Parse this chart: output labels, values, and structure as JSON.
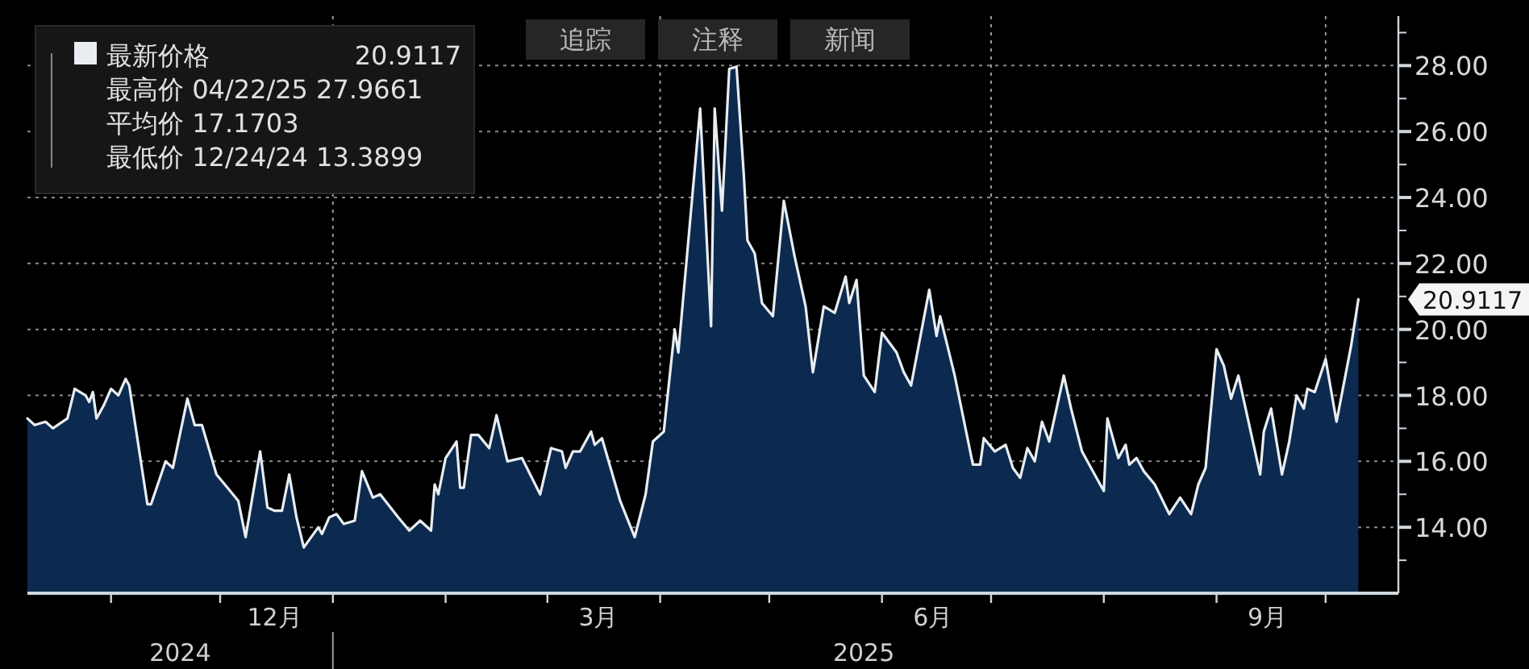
{
  "chart_data": {
    "type": "area",
    "x": [
      "2024-10-09",
      "2024-10-11",
      "2024-10-14",
      "2024-10-16",
      "2024-10-20",
      "2024-10-22",
      "2024-10-25",
      "2024-10-26",
      "2024-10-27",
      "2024-10-28",
      "2024-10-30",
      "2024-11-01",
      "2024-11-03",
      "2024-11-05",
      "2024-11-06",
      "2024-11-11",
      "2024-11-12",
      "2024-11-16",
      "2024-11-18",
      "2024-11-22",
      "2024-11-24",
      "2024-11-26",
      "2024-11-30",
      "2024-12-03",
      "2024-12-06",
      "2024-12-08",
      "2024-12-12",
      "2024-12-14",
      "2024-12-16",
      "2024-12-18",
      "2024-12-20",
      "2024-12-22",
      "2024-12-24",
      "2024-12-28",
      "2024-12-29",
      "2024-12-31",
      "2025-01-02",
      "2025-01-04",
      "2025-01-07",
      "2025-01-09",
      "2025-01-12",
      "2025-01-14",
      "2025-01-19",
      "2025-01-22",
      "2025-01-25",
      "2025-01-28",
      "2025-01-29",
      "2025-01-30",
      "2025-02-01",
      "2025-02-04",
      "2025-02-05",
      "2025-02-06",
      "2025-02-08",
      "2025-02-10",
      "2025-02-13",
      "2025-02-15",
      "2025-02-18",
      "2025-02-22",
      "2025-02-27",
      "2025-03-02",
      "2025-03-05",
      "2025-03-06",
      "2025-03-08",
      "2025-03-10",
      "2025-03-13",
      "2025-03-14",
      "2025-03-16",
      "2025-03-21",
      "2025-03-25",
      "2025-03-28",
      "2025-03-30",
      "2025-04-02",
      "2025-04-05",
      "2025-04-06",
      "2025-04-12",
      "2025-04-15",
      "2025-04-16",
      "2025-04-18",
      "2025-04-20",
      "2025-04-22",
      "2025-04-24",
      "2025-04-25",
      "2025-04-27",
      "2025-04-29",
      "2025-05-02",
      "2025-05-05",
      "2025-05-08",
      "2025-05-11",
      "2025-05-13",
      "2025-05-16",
      "2025-05-19",
      "2025-05-22",
      "2025-05-23",
      "2025-05-25",
      "2025-05-27",
      "2025-05-30",
      "2025-06-01",
      "2025-06-05",
      "2025-06-07",
      "2025-06-09",
      "2025-06-14",
      "2025-06-16",
      "2025-06-17",
      "2025-06-21",
      "2025-06-26",
      "2025-06-28",
      "2025-06-29",
      "2025-07-02",
      "2025-07-05",
      "2025-07-07",
      "2025-07-09",
      "2025-07-11",
      "2025-07-13",
      "2025-07-15",
      "2025-07-17",
      "2025-07-21",
      "2025-07-23",
      "2025-07-26",
      "2025-07-28",
      "2025-08-01",
      "2025-08-02",
      "2025-08-05",
      "2025-08-07",
      "2025-08-08",
      "2025-08-10",
      "2025-08-12",
      "2025-08-15",
      "2025-08-19",
      "2025-08-22",
      "2025-08-25",
      "2025-08-27",
      "2025-08-29",
      "2025-09-01",
      "2025-09-03",
      "2025-09-05",
      "2025-09-07",
      "2025-09-10",
      "2025-09-13",
      "2025-09-14",
      "2025-09-16",
      "2025-09-19",
      "2025-09-21",
      "2025-09-23",
      "2025-09-25",
      "2025-09-26",
      "2025-09-28",
      "2025-10-01",
      "2025-10-04",
      "2025-10-08",
      "2025-10-10"
    ],
    "series": [
      {
        "name": "最新价格",
        "color": "#e8edf2",
        "values": [
          17.3,
          17.1,
          17.2,
          17.0,
          17.3,
          18.2,
          18.0,
          17.8,
          18.1,
          17.3,
          17.7,
          18.2,
          18.0,
          18.5,
          18.3,
          14.7,
          14.7,
          16.0,
          15.8,
          17.9,
          17.1,
          17.1,
          15.6,
          15.2,
          14.8,
          13.7,
          16.3,
          14.6,
          14.5,
          14.5,
          15.6,
          14.3,
          13.3899,
          14.0,
          13.8,
          14.3,
          14.4,
          14.1,
          14.2,
          15.7,
          14.9,
          15.0,
          14.3,
          13.9,
          14.2,
          13.9,
          15.3,
          15.0,
          16.1,
          16.6,
          15.2,
          15.2,
          16.8,
          16.8,
          16.4,
          17.4,
          16.0,
          16.1,
          15.0,
          16.4,
          16.3,
          15.8,
          16.3,
          16.3,
          16.9,
          16.5,
          16.7,
          14.8,
          13.7,
          15.0,
          16.6,
          16.9,
          20.0,
          19.3,
          26.7,
          20.1,
          26.7,
          23.6,
          27.9,
          27.9661,
          24.7,
          22.7,
          22.3,
          20.8,
          20.4,
          23.9,
          22.2,
          20.7,
          18.7,
          20.7,
          20.5,
          21.6,
          20.8,
          21.5,
          18.6,
          18.1,
          19.9,
          19.3,
          18.7,
          18.3,
          21.2,
          19.8,
          20.4,
          18.6,
          15.9,
          15.9,
          16.7,
          16.3,
          16.5,
          15.8,
          15.5,
          16.4,
          16.0,
          17.2,
          16.6,
          18.6,
          17.6,
          16.3,
          15.9,
          15.1,
          17.3,
          16.1,
          16.5,
          15.9,
          16.1,
          15.7,
          15.3,
          14.4,
          14.9,
          14.4,
          15.3,
          15.8,
          19.4,
          18.9,
          17.9,
          18.6,
          17.1,
          15.6,
          16.9,
          17.6,
          15.6,
          16.6,
          18.0,
          17.6,
          18.2,
          18.1,
          19.1,
          17.2,
          19.5,
          20.9117
        ]
      }
    ],
    "xlim": [
      "2024-10-09",
      "2025-10-21"
    ],
    "xticks": [
      {
        "value": "2024-11-01",
        "label": null
      },
      {
        "value": "2024-12-01",
        "label": null
      },
      {
        "value": "2024-12-16",
        "label": "12月"
      },
      {
        "value": "2025-01-01",
        "label": null
      },
      {
        "value": "2025-02-01",
        "label": null
      },
      {
        "value": "2025-03-01",
        "label": null
      },
      {
        "value": "2025-03-15",
        "label": "3月"
      },
      {
        "value": "2025-04-01",
        "label": null
      },
      {
        "value": "2025-05-01",
        "label": null
      },
      {
        "value": "2025-06-01",
        "label": null
      },
      {
        "value": "2025-06-15",
        "label": "6月"
      },
      {
        "value": "2025-07-01",
        "label": null
      },
      {
        "value": "2025-08-01",
        "label": null
      },
      {
        "value": "2025-09-01",
        "label": null
      },
      {
        "value": "2025-09-15",
        "label": "9月"
      },
      {
        "value": "2025-10-01",
        "label": null
      }
    ],
    "x2lim": [
      "2024-10-09",
      "2025-10-21"
    ],
    "x2ticks": [
      {
        "value": "2024-11-20",
        "label": "2024"
      },
      {
        "value": "2025-01-01",
        "label": null
      },
      {
        "value": "2025-05-27",
        "label": "2025"
      }
    ],
    "ylim": [
      12,
      29.5
    ],
    "yticks": [
      {
        "value": 13,
        "label": null
      },
      {
        "value": 14,
        "label": "14.00"
      },
      {
        "value": 15,
        "label": null
      },
      {
        "value": 16,
        "label": "16.00"
      },
      {
        "value": 17,
        "label": null
      },
      {
        "value": 18,
        "label": "18.00"
      },
      {
        "value": 19,
        "label": null
      },
      {
        "value": 20,
        "label": "20.00"
      },
      {
        "value": 21,
        "label": null
      },
      {
        "value": 22,
        "label": "22.00"
      },
      {
        "value": 23,
        "label": null
      },
      {
        "value": 24,
        "label": "24.00"
      },
      {
        "value": 25,
        "label": null
      },
      {
        "value": 26,
        "label": "26.00"
      },
      {
        "value": 27,
        "label": null
      },
      {
        "value": 28,
        "label": "28.00"
      },
      {
        "value": 29,
        "label": null
      }
    ],
    "grid": "y",
    "legend": "top left",
    "ref_lines": [
      {
        "axis": "x",
        "value": "2025-01-01",
        "line_style": "dotted"
      },
      {
        "axis": "x",
        "value": "2025-04-01",
        "line_style": "dotted"
      },
      {
        "axis": "x",
        "value": "2025-07-01",
        "line_style": "dotted"
      },
      {
        "axis": "x",
        "value": "2025-10-01",
        "line_style": "dotted"
      }
    ],
    "annotations": [
      "20.9117",
      "最高价 04/22/25 27.9661",
      "平均价 17.1703",
      "最低价 12/24/24 13.3899",
      "追踪",
      "注释",
      "新闻",
      {
        "text": "20.9117",
        "x": "2025-10-10",
        "y": 20.9117
      }
    ]
  }
}
